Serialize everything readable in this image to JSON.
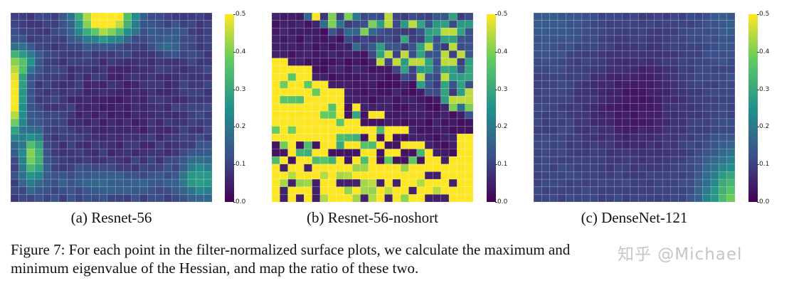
{
  "colormap": [
    "#440154",
    "#3b528b",
    "#21918c",
    "#5ec962",
    "#fde725"
  ],
  "colorbar": {
    "min": 0.0,
    "max": 0.5,
    "ticks": [
      "0.0",
      "0.1",
      "0.2",
      "0.3",
      "0.4",
      "0.5"
    ]
  },
  "panels": [
    {
      "id": "a",
      "caption": "(a) Resnet-56"
    },
    {
      "id": "b",
      "caption": "(b) Resnet-56-noshort"
    },
    {
      "id": "c",
      "caption": "(c) DenseNet-121"
    }
  ],
  "figure_caption": {
    "line1": "Figure 7: For each point in the filter-normalized surface plots, we calculate the maximum and",
    "line2": "minimum eigenvalue of the Hessian, and map the ratio of these two."
  },
  "watermark": "知乎 @Michael",
  "chart_data": [
    {
      "type": "heatmap",
      "title": "(a) Resnet-56",
      "grid": [
        25,
        25
      ],
      "zlim": [
        0.0,
        0.5
      ],
      "description_of_values": "mostly 0.05-0.12; high ratio (~0.5) at top-center and left edge, ~0.25-0.35 near bottom-left and bottom-right",
      "hotspots": [
        {
          "region": "top-center",
          "value": 0.5
        },
        {
          "region": "left-edge-middle",
          "value": 0.5
        },
        {
          "region": "bottom-left",
          "value": 0.35
        },
        {
          "region": "bottom-right",
          "value": 0.25
        }
      ]
    },
    {
      "type": "heatmap",
      "title": "(b) Resnet-56-noshort",
      "grid": [
        25,
        25
      ],
      "zlim": [
        0.0,
        0.5
      ],
      "description_of_values": "chaotic: large saturated (0.5) regions on left and bottom, near-zero diagonal band from top-left to right, scattered mid values",
      "hotspots": [
        {
          "region": "left",
          "value": 0.5
        },
        {
          "region": "bottom",
          "value": 0.5
        },
        {
          "region": "diagonal-band",
          "value": 0.0
        }
      ]
    },
    {
      "type": "heatmap",
      "title": "(c) DenseNet-121",
      "grid": [
        25,
        25
      ],
      "zlim": [
        0.0,
        0.5
      ],
      "description_of_values": "smooth: ~0.1 background, darker ~0.02 ellipse in center, ~0.3 at bottom-right corner",
      "hotspots": [
        {
          "region": "center",
          "value": 0.02
        },
        {
          "region": "bottom-right",
          "value": 0.3
        }
      ]
    }
  ]
}
